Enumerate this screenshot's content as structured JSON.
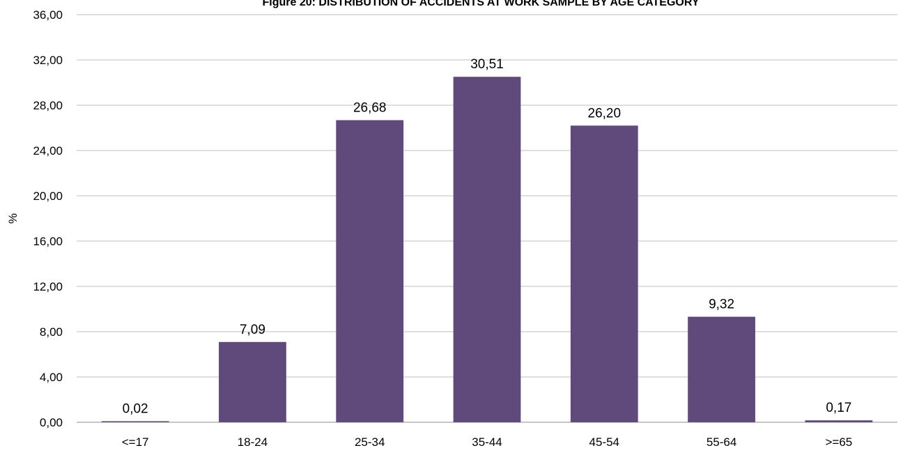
{
  "chart_data": {
    "type": "bar",
    "title": "Figure 20: DISTRIBUTION OF ACCIDENTS AT WORK SAMPLE BY AGE CATEGORY",
    "xlabel": "",
    "ylabel": "%",
    "categories": [
      "<=17",
      "18-24",
      "25-34",
      "35-44",
      "45-54",
      "55-64",
      ">=65"
    ],
    "values": [
      0.02,
      7.09,
      26.68,
      30.51,
      26.2,
      9.32,
      0.17
    ],
    "data_labels": [
      "0,02",
      "7,09",
      "26,68",
      "30,51",
      "26,20",
      "9,32",
      "0,17"
    ],
    "ylim": [
      0,
      36
    ],
    "yticks": [
      0,
      4,
      8,
      12,
      16,
      20,
      24,
      28,
      32,
      36
    ],
    "ytick_labels": [
      "0,00",
      "4,00",
      "8,00",
      "12,00",
      "16,00",
      "20,00",
      "24,00",
      "28,00",
      "32,00",
      "36,00"
    ],
    "grid": true,
    "legend": "none",
    "bar_color": "#604a7b"
  }
}
